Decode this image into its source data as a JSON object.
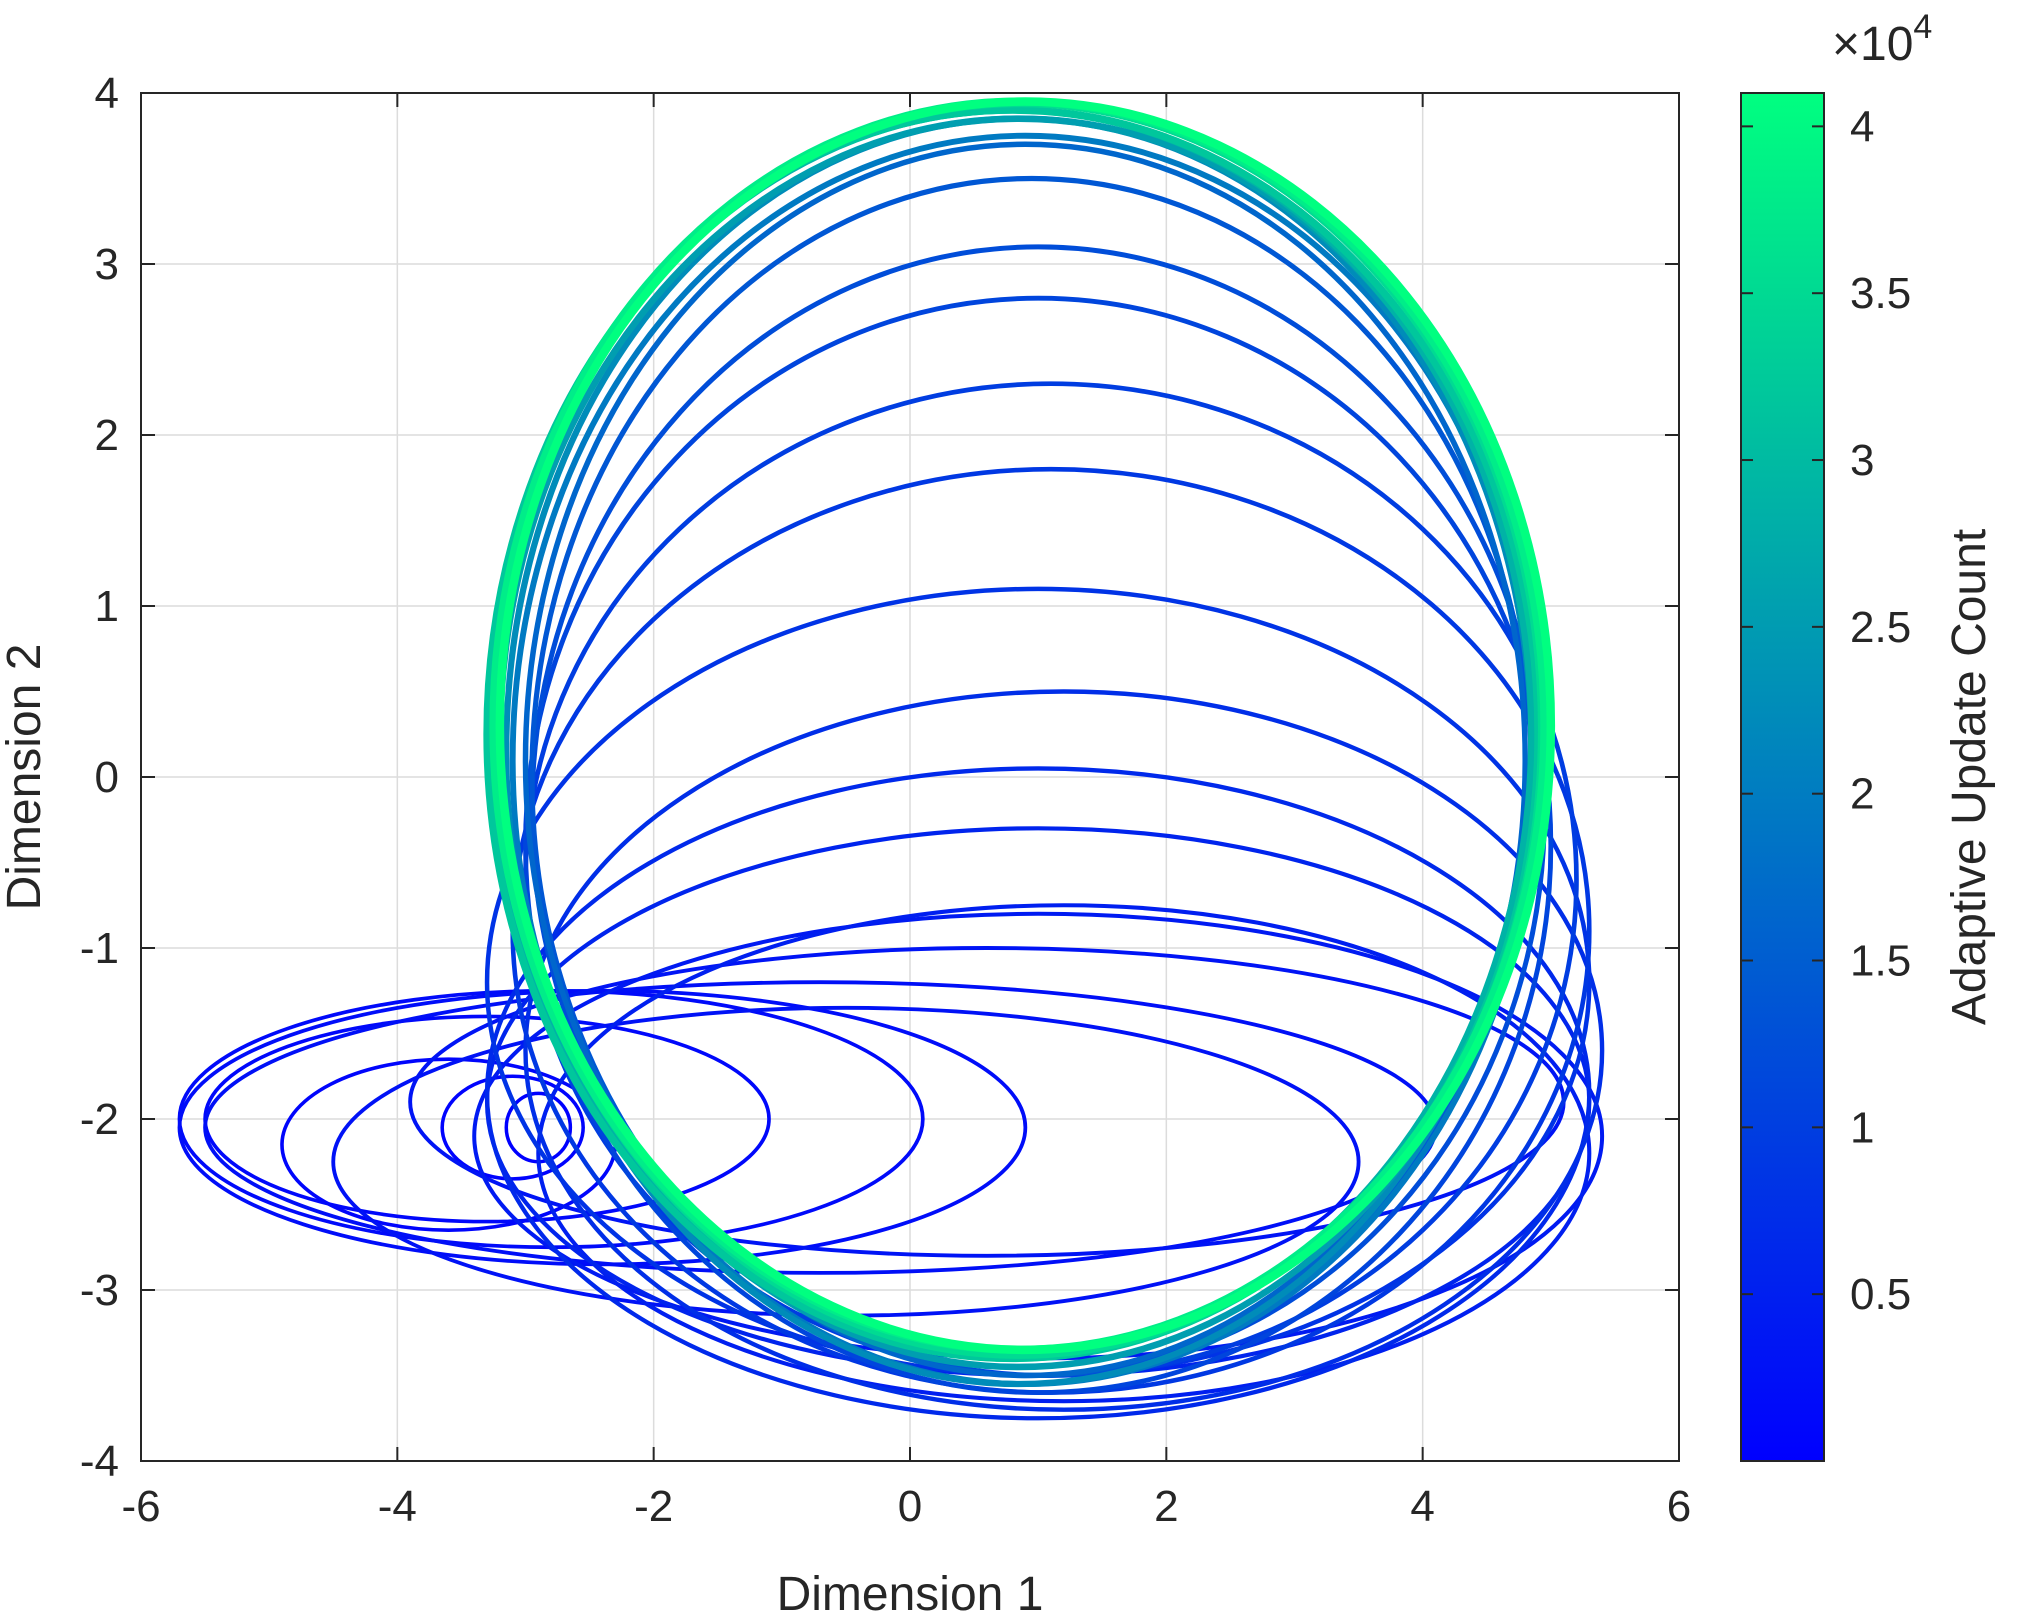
{
  "chart_data": {
    "type": "line",
    "title": "",
    "xlabel": "Dimension 1",
    "ylabel": "Dimension 2",
    "xlim": [
      -6,
      6
    ],
    "ylim": [
      -4,
      4
    ],
    "xticks": [
      -6,
      -4,
      -2,
      0,
      2,
      4,
      6
    ],
    "yticks": [
      -4,
      -3,
      -2,
      -1,
      0,
      1,
      2,
      3,
      4
    ],
    "grid": true,
    "colorbar": {
      "label": "Adaptive Update Count",
      "multiplier": "×10",
      "exponent": "4",
      "ticks": [
        0.5,
        1,
        1.5,
        2,
        2.5,
        3,
        3.5,
        4
      ],
      "tick_labels": [
        "0.5",
        "1",
        "1.5",
        "2",
        "2.5",
        "3",
        "3.5",
        "4"
      ],
      "range": [
        0,
        41000
      ],
      "colormap": [
        "#0000ff",
        "#00ff80"
      ]
    },
    "series": [
      {
        "description_of_trajectory": "",
        "loops": [
          {
            "cx": -2.9,
            "cy": -2.05,
            "rx": 0.25,
            "ry": 0.2,
            "t": 0.0
          },
          {
            "cx": -3.1,
            "cy": -2.05,
            "rx": 0.55,
            "ry": 0.3,
            "t": 0.01
          },
          {
            "cx": -3.6,
            "cy": -2.15,
            "rx": 1.3,
            "ry": 0.5,
            "t": 0.02
          },
          {
            "cx": -3.3,
            "cy": -2.0,
            "rx": 2.2,
            "ry": 0.6,
            "t": 0.03
          },
          {
            "cx": -2.8,
            "cy": -2.0,
            "rx": 2.9,
            "ry": 0.75,
            "t": 0.04
          },
          {
            "cx": -2.4,
            "cy": -2.05,
            "rx": 3.3,
            "ry": 0.8,
            "t": 0.05
          },
          {
            "cx": -0.7,
            "cy": -2.05,
            "rx": 4.8,
            "ry": 0.85,
            "t": 0.06
          },
          {
            "cx": -0.5,
            "cy": -2.25,
            "rx": 4.0,
            "ry": 0.9,
            "t": 0.07
          },
          {
            "cx": 0.6,
            "cy": -1.9,
            "rx": 4.5,
            "ry": 0.9,
            "t": 0.08
          },
          {
            "cx": 1.0,
            "cy": -2.1,
            "rx": 4.4,
            "ry": 1.3,
            "t": 0.1
          },
          {
            "cx": 1.2,
            "cy": -2.2,
            "rx": 4.1,
            "ry": 1.45,
            "t": 0.12
          },
          {
            "cx": 1.0,
            "cy": -1.9,
            "rx": 4.3,
            "ry": 1.6,
            "t": 0.14
          },
          {
            "cx": 1.0,
            "cy": -1.85,
            "rx": 4.3,
            "ry": 1.9,
            "t": 0.16
          },
          {
            "cx": 1.2,
            "cy": -1.6,
            "rx": 4.2,
            "ry": 2.1,
            "t": 0.18
          },
          {
            "cx": 1.0,
            "cy": -1.2,
            "rx": 4.3,
            "ry": 2.3,
            "t": 0.2
          },
          {
            "cx": 1.1,
            "cy": -0.9,
            "rx": 4.2,
            "ry": 2.7,
            "t": 0.22
          },
          {
            "cx": 1.1,
            "cy": -0.6,
            "rx": 4.1,
            "ry": 2.9,
            "t": 0.24
          },
          {
            "cx": 1.0,
            "cy": -0.4,
            "rx": 4.0,
            "ry": 3.2,
            "t": 0.27
          },
          {
            "cx": 1.0,
            "cy": -0.2,
            "rx": 3.95,
            "ry": 3.3,
            "t": 0.3
          },
          {
            "cx": 0.95,
            "cy": 0.0,
            "rx": 3.9,
            "ry": 3.5,
            "t": 0.34
          },
          {
            "cx": 0.9,
            "cy": 0.1,
            "rx": 3.9,
            "ry": 3.6,
            "t": 0.4
          },
          {
            "cx": 0.9,
            "cy": 0.1,
            "rx": 4.0,
            "ry": 3.65,
            "t": 0.48
          },
          {
            "cx": 0.85,
            "cy": 0.15,
            "rx": 4.0,
            "ry": 3.7,
            "t": 0.55
          },
          {
            "cx": 0.85,
            "cy": 0.2,
            "rx": 4.05,
            "ry": 3.65,
            "t": 0.62
          },
          {
            "cx": 0.8,
            "cy": 0.25,
            "rx": 4.05,
            "ry": 3.65,
            "t": 0.7
          },
          {
            "cx": 0.8,
            "cy": 0.25,
            "rx": 4.1,
            "ry": 3.65,
            "t": 0.78
          },
          {
            "cx": 0.85,
            "cy": 0.28,
            "rx": 4.08,
            "ry": 3.66,
            "t": 0.86
          },
          {
            "cx": 0.85,
            "cy": 0.3,
            "rx": 4.1,
            "ry": 3.65,
            "t": 0.93
          },
          {
            "cx": 0.9,
            "cy": 0.3,
            "rx": 4.1,
            "ry": 3.65,
            "t": 1.0
          }
        ]
      }
    ]
  }
}
